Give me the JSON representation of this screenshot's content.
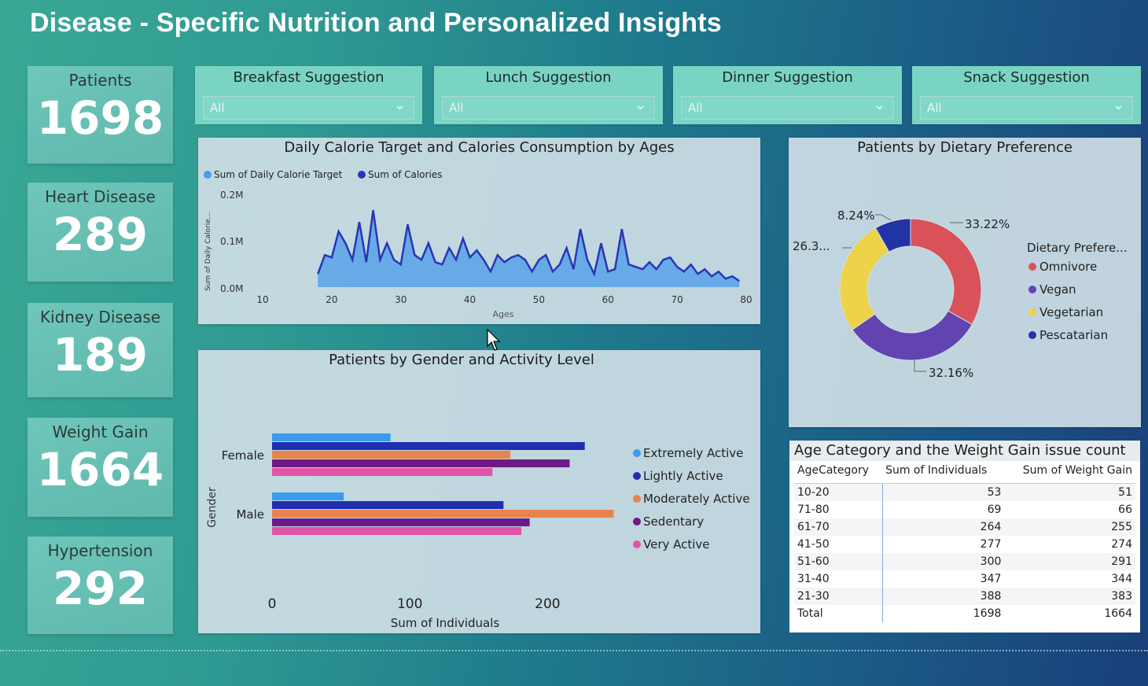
{
  "title": "Disease - Specific Nutrition and Personalized Insights",
  "kpis": [
    {
      "label": "Patients",
      "value": "1698"
    },
    {
      "label": "Heart Disease",
      "value": "289"
    },
    {
      "label": "Kidney Disease",
      "value": "189"
    },
    {
      "label": "Weight Gain",
      "value": "1664"
    },
    {
      "label": "Hypertension",
      "value": "292"
    }
  ],
  "slicers": [
    {
      "title": "Breakfast Suggestion",
      "value": "All"
    },
    {
      "title": "Lunch Suggestion",
      "value": "All"
    },
    {
      "title": "Dinner Suggestion",
      "value": "All"
    },
    {
      "title": "Snack Suggestion",
      "value": "All"
    }
  ],
  "line_chart": {
    "title": "Daily Calorie Target and Calories Consumption by Ages",
    "legend": [
      "Sum of Daily Calorie Target",
      "Sum of Calories"
    ],
    "ylabel": "Sum of Daily Calorie...",
    "xlabel": "Ages",
    "yticks": [
      "0.2M",
      "0.1M",
      "0.0M"
    ],
    "xticks": [
      "10",
      "20",
      "30",
      "40",
      "50",
      "60",
      "70",
      "80"
    ]
  },
  "bar_chart": {
    "title": "Patients by Gender and Activity Level",
    "ylabel": "Gender",
    "xlabel": "Sum of Individuals",
    "xticks": [
      "0",
      "100",
      "200"
    ],
    "legend": [
      "Extremely Active",
      "Lightly Active",
      "Moderately Active",
      "Sedentary",
      "Very Active"
    ]
  },
  "donut_chart": {
    "title": "Patients by Dietary Preference",
    "legend_title": "Dietary Prefere...",
    "labels": [
      "33.22%",
      "32.16%",
      "26.3...",
      "8.24%"
    ],
    "legend": [
      "Omnivore",
      "Vegan",
      "Vegetarian",
      "Pescatarian"
    ]
  },
  "table": {
    "title": "Age Category and the Weight Gain issue count",
    "columns": [
      "AgeCategory",
      "Sum of Individuals",
      "Sum of Weight Gain"
    ],
    "rows": [
      [
        "10-20",
        "53",
        "51"
      ],
      [
        "71-80",
        "69",
        "66"
      ],
      [
        "61-70",
        "264",
        "255"
      ],
      [
        "41-50",
        "277",
        "274"
      ],
      [
        "51-60",
        "300",
        "291"
      ],
      [
        "31-40",
        "347",
        "344"
      ],
      [
        "21-30",
        "388",
        "383"
      ]
    ],
    "total": [
      "Total",
      "1698",
      "1664"
    ]
  },
  "colors": {
    "calorie_target": "#4a9bea",
    "calories": "#2b35b5",
    "extremely_active": "#3b9bf0",
    "lightly_active": "#1f2fae",
    "moderately_active": "#e8834c",
    "sedentary": "#6b1a86",
    "very_active": "#e055a8",
    "omnivore": "#d9525a",
    "vegan": "#6244b0",
    "vegetarian": "#eed34a",
    "pescatarian": "#2233a6"
  },
  "chart_data": [
    {
      "type": "area",
      "title": "Daily Calorie Target and Calories Consumption by Ages",
      "xlabel": "Ages",
      "ylabel": "Sum of Daily Calorie...",
      "xlim": [
        10,
        80
      ],
      "ylim": [
        0,
        200000
      ],
      "x": [
        18,
        19,
        20,
        21,
        22,
        23,
        24,
        25,
        26,
        27,
        28,
        29,
        30,
        31,
        32,
        33,
        34,
        35,
        36,
        37,
        38,
        39,
        40,
        41,
        42,
        43,
        44,
        45,
        46,
        47,
        48,
        49,
        50,
        51,
        52,
        53,
        54,
        55,
        56,
        57,
        58,
        59,
        60,
        61,
        62,
        63,
        64,
        65,
        66,
        67,
        68,
        69,
        70,
        71,
        72,
        73,
        74,
        75,
        76,
        77,
        78,
        79
      ],
      "series": [
        {
          "name": "Sum of Daily Calorie Target",
          "values": [
            30000,
            70000,
            65000,
            120000,
            95000,
            60000,
            140000,
            55000,
            165000,
            60000,
            95000,
            60000,
            50000,
            135000,
            70000,
            60000,
            95000,
            55000,
            50000,
            85000,
            60000,
            105000,
            65000,
            80000,
            60000,
            35000,
            70000,
            55000,
            65000,
            70000,
            60000,
            35000,
            60000,
            70000,
            35000,
            50000,
            85000,
            40000,
            125000,
            60000,
            30000,
            95000,
            35000,
            40000,
            125000,
            50000,
            45000,
            40000,
            55000,
            40000,
            60000,
            65000,
            45000,
            35000,
            50000,
            30000,
            40000,
            25000,
            35000,
            20000,
            25000,
            15000
          ]
        },
        {
          "name": "Sum of Calories",
          "values": [
            28000,
            68000,
            63000,
            118000,
            93000,
            58000,
            138000,
            53000,
            163000,
            58000,
            93000,
            58000,
            48000,
            133000,
            68000,
            58000,
            93000,
            53000,
            48000,
            83000,
            58000,
            103000,
            63000,
            78000,
            58000,
            33000,
            68000,
            53000,
            63000,
            68000,
            58000,
            33000,
            58000,
            68000,
            33000,
            48000,
            83000,
            38000,
            123000,
            58000,
            28000,
            93000,
            33000,
            38000,
            123000,
            48000,
            43000,
            38000,
            53000,
            38000,
            58000,
            63000,
            43000,
            33000,
            48000,
            28000,
            38000,
            23000,
            33000,
            18000,
            23000,
            13000
          ]
        }
      ]
    },
    {
      "type": "bar",
      "title": "Patients by Gender and Activity Level",
      "xlabel": "Sum of Individuals",
      "ylabel": "Gender",
      "categories": [
        "Female",
        "Male"
      ],
      "series": [
        {
          "name": "Extremely Active",
          "values": [
            86,
            52
          ]
        },
        {
          "name": "Lightly Active",
          "values": [
            227,
            168
          ]
        },
        {
          "name": "Moderately Active",
          "values": [
            173,
            248
          ]
        },
        {
          "name": "Sedentary",
          "values": [
            216,
            187
          ]
        },
        {
          "name": "Very Active",
          "values": [
            160,
            181
          ]
        }
      ],
      "xlim": [
        0,
        250
      ]
    },
    {
      "type": "pie",
      "title": "Patients by Dietary Preference",
      "categories": [
        "Omnivore",
        "Vegan",
        "Vegetarian",
        "Pescatarian"
      ],
      "values": [
        33.22,
        32.16,
        26.38,
        8.24
      ]
    }
  ]
}
